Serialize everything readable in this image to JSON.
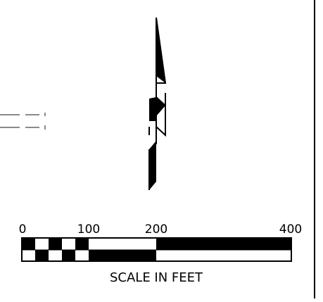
{
  "scale_bar": {
    "tick_labels": [
      "0",
      "100",
      "200",
      "400"
    ],
    "caption": "SCALE IN FEET"
  },
  "colors": {
    "ink": "#000000",
    "paper": "#ffffff",
    "dashed_line": "#8a8a8a"
  }
}
